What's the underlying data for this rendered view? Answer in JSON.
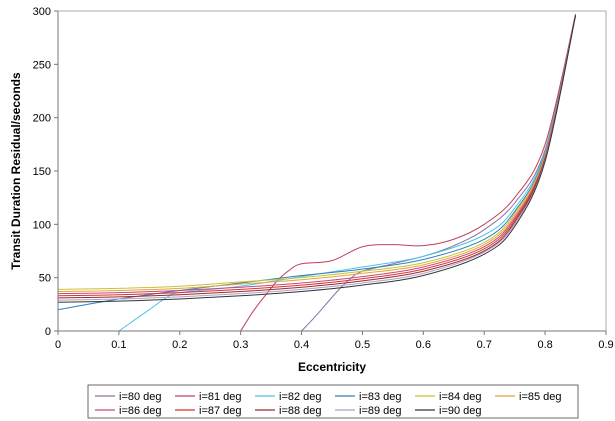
{
  "chart_data": {
    "type": "line",
    "xlabel": "Eccentricity",
    "ylabel": "Transit Duration Residual/seconds",
    "xlim": [
      0,
      0.9
    ],
    "ylim": [
      0,
      300
    ],
    "xticks": [
      0,
      0.1,
      0.2,
      0.3,
      0.4,
      0.5,
      0.6,
      0.7,
      0.8,
      0.9
    ],
    "xtick_labels": [
      "0",
      "0.1",
      "0.2",
      "0.3",
      "0.4",
      "0.5",
      "0.6",
      "0.7",
      "0.8",
      "0.9"
    ],
    "yticks": [
      0,
      50,
      100,
      150,
      200,
      250,
      300
    ],
    "ytick_labels": [
      "0",
      "50",
      "100",
      "150",
      "200",
      "250",
      "300"
    ],
    "grid": false,
    "legend_position": "bottom",
    "series": [
      {
        "name": "i=80 deg",
        "color": "#8c6fa6",
        "x": [
          0.4,
          0.42,
          0.44,
          0.46,
          0.48,
          0.5,
          0.55,
          0.6,
          0.65,
          0.7,
          0.75,
          0.8,
          0.85
        ],
        "y": [
          0,
          12,
          25,
          38,
          49,
          56,
          63,
          70,
          80,
          95,
          120,
          170,
          297
        ]
      },
      {
        "name": "i=81 deg",
        "color": "#c0405a",
        "x": [
          0.3,
          0.32,
          0.34,
          0.36,
          0.38,
          0.4,
          0.45,
          0.5,
          0.55,
          0.6,
          0.65,
          0.7,
          0.75,
          0.8,
          0.85
        ],
        "y": [
          0,
          18,
          33,
          47,
          57,
          63,
          66,
          79,
          81,
          80,
          86,
          100,
          125,
          175,
          297
        ]
      },
      {
        "name": "i=82 deg",
        "color": "#4dc4e6",
        "x": [
          0.1,
          0.12,
          0.15,
          0.18,
          0.2,
          0.3,
          0.4,
          0.5,
          0.6,
          0.7,
          0.75,
          0.8,
          0.85
        ],
        "y": [
          0,
          8,
          20,
          32,
          36,
          42,
          51,
          60,
          70,
          90,
          115,
          168,
          296
        ]
      },
      {
        "name": "i=83 deg",
        "color": "#2f7fbf",
        "x": [
          0.0,
          0.1,
          0.2,
          0.3,
          0.4,
          0.5,
          0.6,
          0.7,
          0.75,
          0.8,
          0.85
        ],
        "y": [
          20,
          30,
          38,
          45,
          52,
          58,
          67,
          86,
          112,
          166,
          296
        ]
      },
      {
        "name": "i=84 deg",
        "color": "#c8c23a",
        "x": [
          0.0,
          0.1,
          0.2,
          0.3,
          0.4,
          0.5,
          0.6,
          0.7,
          0.75,
          0.8,
          0.85
        ],
        "y": [
          39,
          40,
          42,
          46,
          50,
          56,
          64,
          83,
          110,
          165,
          296
        ]
      },
      {
        "name": "i=85 deg",
        "color": "#e8a53a",
        "x": [
          0.0,
          0.1,
          0.2,
          0.3,
          0.4,
          0.5,
          0.6,
          0.7,
          0.75,
          0.8,
          0.85
        ],
        "y": [
          37,
          38,
          40,
          44,
          48,
          54,
          62,
          81,
          108,
          164,
          296
        ]
      },
      {
        "name": "i=86 deg",
        "color": "#c44a7a",
        "x": [
          0.0,
          0.1,
          0.2,
          0.3,
          0.4,
          0.5,
          0.6,
          0.7,
          0.75,
          0.8,
          0.85
        ],
        "y": [
          35,
          36,
          38,
          41,
          45,
          51,
          60,
          79,
          106,
          163,
          296
        ]
      },
      {
        "name": "i=87 deg",
        "color": "#d9302f",
        "x": [
          0.0,
          0.1,
          0.2,
          0.3,
          0.4,
          0.5,
          0.6,
          0.7,
          0.75,
          0.8,
          0.85
        ],
        "y": [
          33,
          34,
          36,
          39,
          43,
          49,
          58,
          77,
          104,
          162,
          296
        ]
      },
      {
        "name": "i=88 deg",
        "color": "#a02630",
        "x": [
          0.0,
          0.1,
          0.2,
          0.3,
          0.4,
          0.5,
          0.6,
          0.7,
          0.75,
          0.8,
          0.85
        ],
        "y": [
          31,
          32,
          34,
          37,
          41,
          47,
          56,
          75,
          102,
          161,
          296
        ]
      },
      {
        "name": "i=89 deg",
        "color": "#a5a5c8",
        "x": [
          0.0,
          0.1,
          0.2,
          0.3,
          0.4,
          0.5,
          0.6,
          0.7,
          0.75,
          0.8,
          0.85
        ],
        "y": [
          29,
          30,
          32,
          35,
          39,
          45,
          54,
          74,
          100,
          160,
          296
        ]
      },
      {
        "name": "i=90 deg",
        "color": "#333333",
        "x": [
          0.0,
          0.1,
          0.2,
          0.3,
          0.4,
          0.5,
          0.6,
          0.7,
          0.75,
          0.8,
          0.85
        ],
        "y": [
          27,
          28,
          30,
          33,
          37,
          43,
          52,
          72,
          98,
          159,
          296
        ]
      }
    ]
  }
}
